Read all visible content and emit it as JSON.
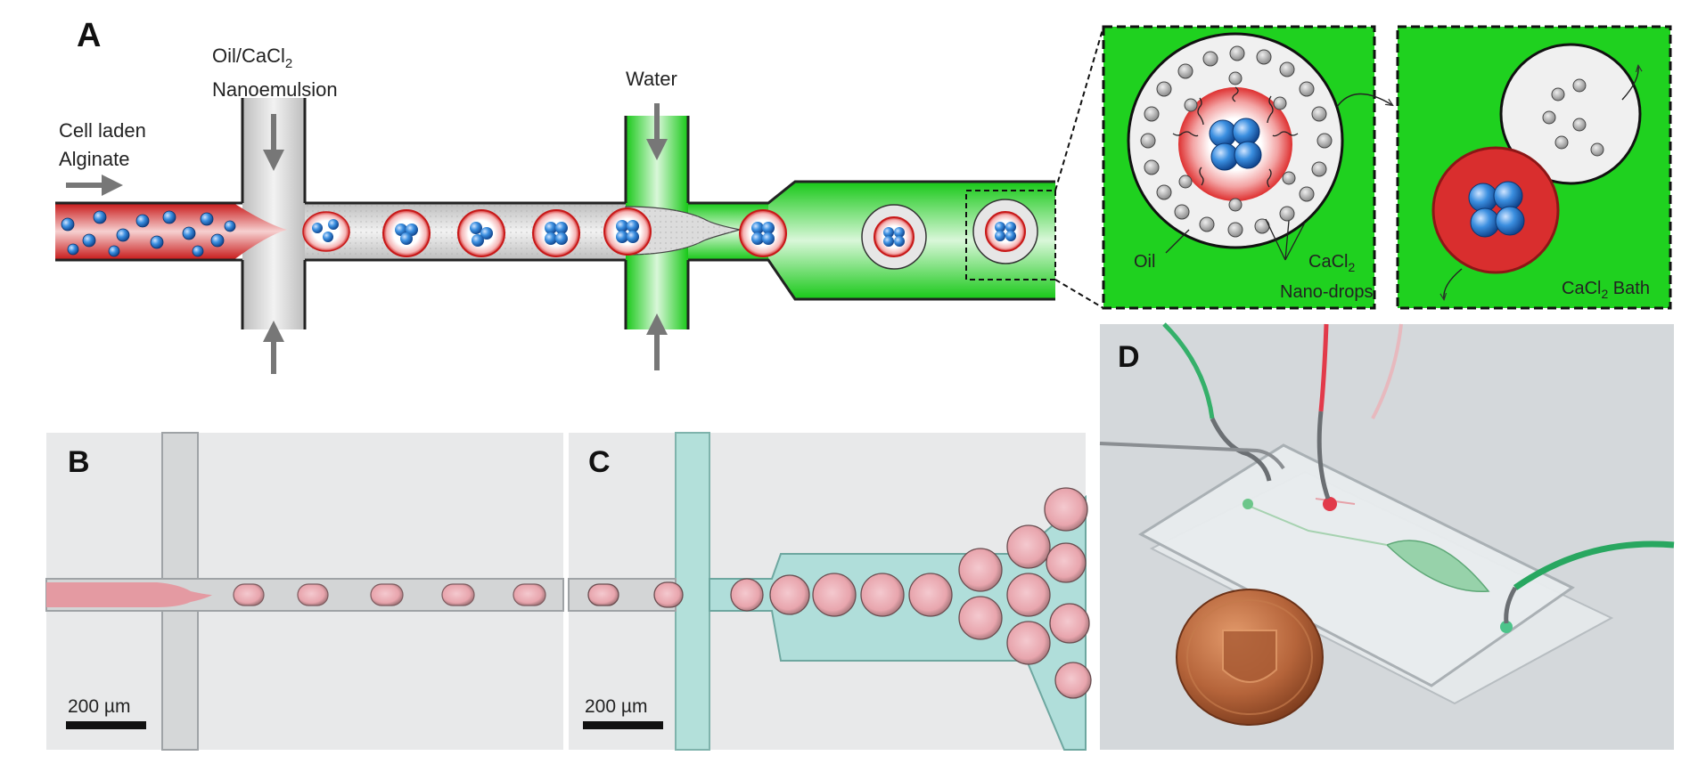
{
  "panel_a": {
    "letter": "A",
    "labels": {
      "alginate_line1": "Cell laden",
      "alginate_line2": "Alginate",
      "oil_line1": "Oil/CaCl",
      "oil_sub": "2",
      "oil_line2": "Nanoemulsion",
      "water": "Water"
    },
    "inset1": {
      "oil": "Oil",
      "cacl": "CaCl",
      "cacl_sub": "2",
      "nanodrops": "Nano-drops"
    },
    "inset2": {
      "bath": "CaCl",
      "bath_sub": "2",
      "bath_suffix": " Bath"
    }
  },
  "panel_b": {
    "letter": "B",
    "scale": "200 µm"
  },
  "panel_c": {
    "letter": "C",
    "scale": "200 µm"
  },
  "panel_d": {
    "letter": "D"
  },
  "colors": {
    "alginate_red": "#d92e2e",
    "water_green": "#1fd11f",
    "oil_gray": "#d7d7d7",
    "cell_blue": "#1e6fc2",
    "droplet_pink": "#e9a2ab",
    "cyan_channel": "#a9dcd6"
  }
}
